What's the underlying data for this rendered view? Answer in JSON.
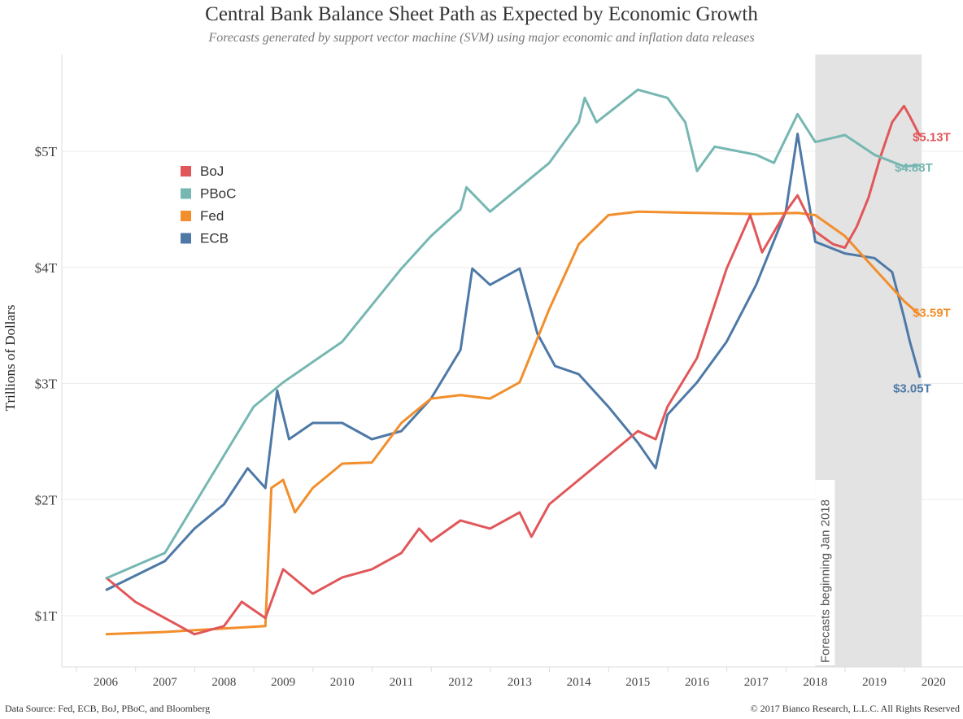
{
  "header": {
    "title": "Central Bank Balance Sheet Path as Expected by Economic Growth",
    "subtitle": "Forecasts generated by support vector machine (SVM) using major economic and inflation data releases"
  },
  "footer": {
    "source": "Data Source: Fed, ECB, BoJ, PBoC, and Bloomberg",
    "copyright": "© 2017 Bianco Research, L.L.C. All Rights Reserved"
  },
  "chart_data": {
    "type": "line",
    "title": "Central Bank Balance Sheet Path as Expected by Economic Growth",
    "xlabel": "",
    "ylabel": "Trillions of Dollars",
    "xlim": [
      2005.6,
      2020.5
    ],
    "ylim": [
      0.55,
      5.9
    ],
    "x_ticks": [
      "2006",
      "2007",
      "2008",
      "2009",
      "2010",
      "2011",
      "2012",
      "2013",
      "2014",
      "2015",
      "2016",
      "2017",
      "2018",
      "2019",
      "2020"
    ],
    "y_ticks": [
      {
        "value": 1,
        "label": "$1T"
      },
      {
        "value": 2,
        "label": "$2T"
      },
      {
        "value": 3,
        "label": "$3T"
      },
      {
        "value": 4,
        "label": "$4T"
      },
      {
        "value": 5,
        "label": "$5T"
      }
    ],
    "grid": true,
    "legend_placement": "top-left",
    "forecast_region": {
      "start": 2018.0,
      "end": 2019.8,
      "label": "Forecasts beginning Jan 2018",
      "color": "#e3e3e3"
    },
    "series": [
      {
        "name": "BoJ",
        "color": "#e15759",
        "end_label": "$5.13T",
        "x": [
          2006,
          2006.5,
          2007,
          2007.5,
          2008,
          2008.3,
          2008.7,
          2009,
          2009.5,
          2010,
          2010.5,
          2011,
          2011.3,
          2011.5,
          2012,
          2012.5,
          2013,
          2013.2,
          2013.5,
          2014,
          2014.5,
          2015,
          2015.3,
          2015.5,
          2016,
          2016.5,
          2016.9,
          2017.1,
          2017.5,
          2017.7,
          2018,
          2018.3,
          2018.5,
          2018.7,
          2018.9,
          2019.1,
          2019.3,
          2019.5,
          2019.6,
          2019.77
        ],
        "y": [
          1.33,
          1.12,
          0.98,
          0.84,
          0.91,
          1.12,
          0.98,
          1.4,
          1.19,
          1.33,
          1.4,
          1.54,
          1.75,
          1.64,
          1.82,
          1.75,
          1.89,
          1.68,
          1.96,
          2.17,
          2.38,
          2.59,
          2.52,
          2.8,
          3.22,
          3.99,
          4.45,
          4.13,
          4.48,
          4.62,
          4.31,
          4.2,
          4.17,
          4.35,
          4.6,
          4.95,
          5.25,
          5.39,
          5.3,
          5.13
        ]
      },
      {
        "name": "PBoC",
        "color": "#76b7b2",
        "end_label": "$4.88T",
        "x": [
          2006,
          2007,
          2008,
          2008.5,
          2009,
          2010,
          2011,
          2011.5,
          2012,
          2012.1,
          2012.5,
          2013,
          2013.5,
          2014,
          2014.1,
          2014.3,
          2015,
          2015.5,
          2015.8,
          2016,
          2016.3,
          2017,
          2017.3,
          2017.7,
          2018,
          2018.5,
          2019,
          2019.5,
          2019.77
        ],
        "y": [
          1.32,
          1.54,
          2.38,
          2.8,
          3.01,
          3.36,
          3.99,
          4.27,
          4.5,
          4.69,
          4.48,
          4.69,
          4.9,
          5.25,
          5.46,
          5.25,
          5.53,
          5.46,
          5.25,
          4.83,
          5.04,
          4.97,
          4.9,
          5.32,
          5.08,
          5.14,
          4.97,
          4.87,
          4.88
        ]
      },
      {
        "name": "Fed",
        "color": "#f28e2b",
        "end_label": "$3.59T",
        "x": [
          2006,
          2007,
          2008,
          2008.7,
          2008.8,
          2009,
          2009.2,
          2009.5,
          2010,
          2010.5,
          2011,
          2011.5,
          2012,
          2012.5,
          2013,
          2013.5,
          2014,
          2014.5,
          2015,
          2016,
          2017,
          2017.7,
          2018,
          2018.5,
          2019,
          2019.5,
          2019.77
        ],
        "y": [
          0.84,
          0.86,
          0.89,
          0.91,
          2.1,
          2.17,
          1.89,
          2.1,
          2.31,
          2.32,
          2.66,
          2.87,
          2.9,
          2.87,
          3.01,
          3.64,
          4.2,
          4.45,
          4.48,
          4.47,
          4.46,
          4.47,
          4.45,
          4.27,
          3.99,
          3.71,
          3.59
        ]
      },
      {
        "name": "ECB",
        "color": "#4e79a7",
        "end_label": "$3.05T",
        "x": [
          2006,
          2007,
          2007.5,
          2008,
          2008.4,
          2008.7,
          2008.9,
          2009.1,
          2009.5,
          2010,
          2010.5,
          2011,
          2011.5,
          2012,
          2012.2,
          2012.5,
          2013,
          2013.3,
          2013.6,
          2014,
          2014.5,
          2015,
          2015.3,
          2015.5,
          2016,
          2016.5,
          2017,
          2017.5,
          2017.7,
          2018,
          2018.5,
          2019,
          2019.3,
          2019.5,
          2019.6,
          2019.77
        ],
        "y": [
          1.22,
          1.47,
          1.75,
          1.96,
          2.27,
          2.1,
          2.94,
          2.52,
          2.66,
          2.66,
          2.52,
          2.59,
          2.87,
          3.29,
          3.99,
          3.85,
          3.99,
          3.43,
          3.15,
          3.08,
          2.8,
          2.49,
          2.27,
          2.73,
          3.01,
          3.36,
          3.85,
          4.48,
          5.15,
          4.22,
          4.12,
          4.08,
          3.96,
          3.57,
          3.36,
          3.05
        ]
      }
    ]
  }
}
